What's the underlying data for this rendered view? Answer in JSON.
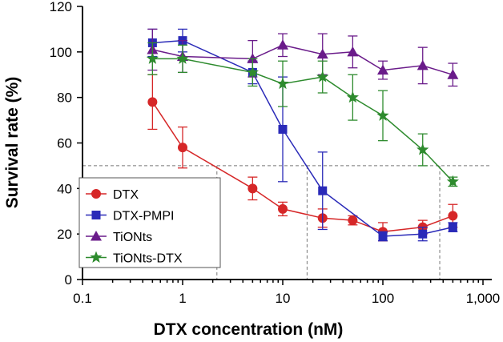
{
  "chart_data": {
    "type": "line",
    "xscale": "log",
    "xlabel": "DTX concentration (nM)",
    "ylabel": "Survival rate (%)",
    "xlim": [
      0.1,
      1000
    ],
    "ylim": [
      0,
      120
    ],
    "x_ticks": [
      0.1,
      1,
      10,
      100,
      1000
    ],
    "x_tick_labels": [
      "0.1",
      "1",
      "10",
      "100",
      "1,000"
    ],
    "y_ticks": [
      0,
      20,
      40,
      60,
      80,
      100,
      120
    ],
    "y_tick_labels": [
      "0",
      "20",
      "40",
      "60",
      "80",
      "100",
      "120"
    ],
    "x": [
      0.5,
      1,
      5,
      10,
      25,
      50,
      100,
      250,
      500
    ],
    "reference": {
      "y": 50,
      "x_intercepts": [
        2.2,
        17.5,
        370
      ]
    },
    "legend_position": "bottom-left",
    "series": [
      {
        "name": "DTX",
        "color": "#d62728",
        "marker": "circle",
        "values": [
          78,
          58,
          40,
          31,
          27,
          26,
          21,
          23,
          28
        ],
        "errors": [
          12,
          9,
          5,
          3,
          4,
          2,
          4,
          3,
          5
        ]
      },
      {
        "name": "DTX-PMPI",
        "color": "#2a2ab8",
        "marker": "square",
        "values": [
          104,
          105,
          91,
          66,
          39,
          null,
          19,
          20,
          23
        ],
        "errors": [
          6,
          5,
          5,
          23,
          17,
          null,
          2,
          3,
          2
        ]
      },
      {
        "name": "TiONts",
        "color": "#6a1b8a",
        "marker": "triangle",
        "values": [
          101,
          98,
          97,
          103,
          99,
          100,
          92,
          94,
          90
        ],
        "errors": [
          9,
          7,
          8,
          5,
          9,
          7,
          4,
          8,
          5
        ]
      },
      {
        "name": "TiONts-DTX",
        "color": "#2e8b2e",
        "marker": "star",
        "values": [
          97,
          97,
          91,
          86,
          89,
          80,
          72,
          57,
          43
        ],
        "errors": [
          7,
          6,
          6,
          10,
          7,
          10,
          11,
          7,
          2
        ]
      }
    ]
  }
}
